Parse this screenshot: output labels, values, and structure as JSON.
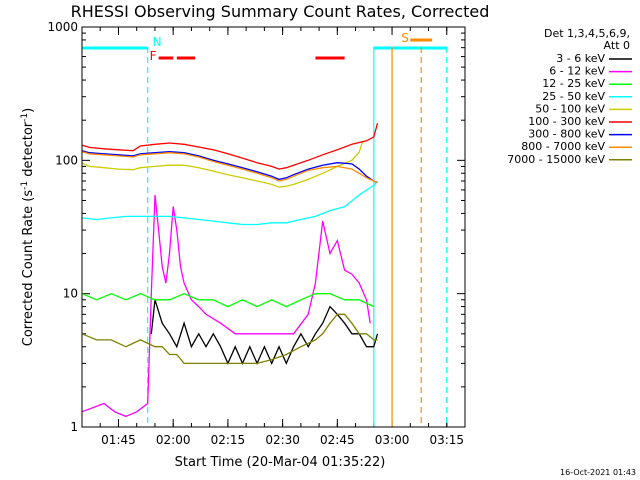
{
  "chart_data": {
    "type": "line",
    "title": "RHESSI Observing Summary Count Rates, Corrected",
    "xlabel": "Start Time (20-Mar-04 01:35:22)",
    "ylabel": "Corrected Count Rate (s⁻¹ detector⁻¹)",
    "ylabel_main": "Corrected Count Rate (s",
    "ylabel_sup1": "-1",
    "ylabel_mid": " detector",
    "ylabel_sup2": "-1",
    "ylabel_end": ")",
    "yscale": "log",
    "ylim": [
      1,
      1000
    ],
    "xlim_minutes": [
      -6,
      99
    ],
    "x_unit": "minutes since 01:41",
    "y_ticks": [
      {
        "value": 1,
        "label": "1"
      },
      {
        "value": 10,
        "label": "10"
      },
      {
        "value": 100,
        "label": "100"
      },
      {
        "value": 1000,
        "label": "1000"
      }
    ],
    "x_ticks": [
      {
        "value": 4,
        "label": "01:45"
      },
      {
        "value": 19,
        "label": "02:00"
      },
      {
        "value": 34,
        "label": "02:15"
      },
      {
        "value": 49,
        "label": "02:30"
      },
      {
        "value": 64,
        "label": "02:45"
      },
      {
        "value": 79,
        "label": "03:00"
      },
      {
        "value": 94,
        "label": "03:15"
      }
    ],
    "legend_header": [
      "Det 1,3,4,5,6,9,",
      "Att 0"
    ],
    "legend_position": "right",
    "series": [
      {
        "name": "3 - 6 keV",
        "color": "#000000",
        "points": [
          [
            0,
            null
          ],
          [
            12,
            null
          ],
          [
            13,
            5
          ],
          [
            14,
            9
          ],
          [
            16,
            6
          ],
          [
            18,
            5
          ],
          [
            20,
            4
          ],
          [
            22,
            6
          ],
          [
            24,
            4
          ],
          [
            26,
            5
          ],
          [
            28,
            4
          ],
          [
            30,
            5
          ],
          [
            32,
            4
          ],
          [
            34,
            3
          ],
          [
            36,
            4
          ],
          [
            38,
            3
          ],
          [
            40,
            4
          ],
          [
            42,
            3
          ],
          [
            44,
            4
          ],
          [
            46,
            3
          ],
          [
            48,
            4
          ],
          [
            50,
            3
          ],
          [
            52,
            4
          ],
          [
            54,
            5
          ],
          [
            56,
            4
          ],
          [
            58,
            5
          ],
          [
            60,
            6
          ],
          [
            62,
            8
          ],
          [
            64,
            7
          ],
          [
            66,
            6
          ],
          [
            68,
            5
          ],
          [
            70,
            5
          ],
          [
            72,
            4
          ],
          [
            74,
            4
          ],
          [
            75,
            5
          ]
        ]
      },
      {
        "name": "6 - 12 keV",
        "color": "#ff00ff",
        "points": [
          [
            -6,
            1.3
          ],
          [
            0,
            1.5
          ],
          [
            3,
            1.3
          ],
          [
            6,
            1.2
          ],
          [
            9,
            1.3
          ],
          [
            12,
            1.5
          ],
          [
            13,
            10
          ],
          [
            14,
            55
          ],
          [
            15,
            30
          ],
          [
            16,
            16
          ],
          [
            17,
            12
          ],
          [
            18,
            20
          ],
          [
            19,
            45
          ],
          [
            20,
            30
          ],
          [
            21,
            16
          ],
          [
            22,
            12
          ],
          [
            24,
            9
          ],
          [
            26,
            8
          ],
          [
            28,
            7
          ],
          [
            32,
            6
          ],
          [
            36,
            5
          ],
          [
            40,
            5
          ],
          [
            44,
            5
          ],
          [
            48,
            5
          ],
          [
            52,
            5
          ],
          [
            56,
            7
          ],
          [
            58,
            12
          ],
          [
            60,
            35
          ],
          [
            62,
            20
          ],
          [
            64,
            25
          ],
          [
            66,
            15
          ],
          [
            68,
            14
          ],
          [
            70,
            12
          ],
          [
            72,
            9
          ],
          [
            73,
            6
          ]
        ]
      },
      {
        "name": "12 - 25 keV",
        "color": "#00ff00",
        "points": [
          [
            -6,
            10
          ],
          [
            -2,
            9
          ],
          [
            2,
            10
          ],
          [
            6,
            9
          ],
          [
            10,
            10
          ],
          [
            14,
            9
          ],
          [
            18,
            9
          ],
          [
            22,
            10
          ],
          [
            26,
            9
          ],
          [
            30,
            9
          ],
          [
            34,
            8
          ],
          [
            38,
            9
          ],
          [
            42,
            8
          ],
          [
            46,
            9
          ],
          [
            50,
            8
          ],
          [
            54,
            9
          ],
          [
            58,
            10
          ],
          [
            62,
            10
          ],
          [
            66,
            9
          ],
          [
            70,
            9
          ],
          [
            74,
            8
          ]
        ]
      },
      {
        "name": "25 - 50 keV",
        "color": "#00ffff",
        "points": [
          [
            -6,
            37
          ],
          [
            -2,
            36
          ],
          [
            2,
            37
          ],
          [
            6,
            38
          ],
          [
            10,
            38
          ],
          [
            14,
            38
          ],
          [
            18,
            38
          ],
          [
            22,
            37
          ],
          [
            26,
            36
          ],
          [
            30,
            35
          ],
          [
            34,
            34
          ],
          [
            38,
            33
          ],
          [
            42,
            33
          ],
          [
            46,
            34
          ],
          [
            50,
            34
          ],
          [
            54,
            36
          ],
          [
            58,
            38
          ],
          [
            62,
            42
          ],
          [
            66,
            45
          ],
          [
            70,
            55
          ],
          [
            74,
            65
          ],
          [
            75,
            70
          ]
        ]
      },
      {
        "name": "50 - 100 keV",
        "color": "#cccc00",
        "points": [
          [
            -6,
            95
          ],
          [
            -4,
            90
          ],
          [
            0,
            88
          ],
          [
            4,
            86
          ],
          [
            8,
            85
          ],
          [
            10,
            88
          ],
          [
            14,
            90
          ],
          [
            18,
            92
          ],
          [
            22,
            92
          ],
          [
            26,
            88
          ],
          [
            30,
            83
          ],
          [
            34,
            78
          ],
          [
            38,
            74
          ],
          [
            42,
            70
          ],
          [
            46,
            66
          ],
          [
            48,
            63
          ],
          [
            50,
            64
          ],
          [
            52,
            66
          ],
          [
            56,
            72
          ],
          [
            60,
            80
          ],
          [
            64,
            90
          ],
          [
            68,
            100
          ],
          [
            70,
            115
          ],
          [
            71,
            140
          ]
        ]
      },
      {
        "name": "100 - 300 keV",
        "color": "#ff0000",
        "points": [
          [
            -6,
            130
          ],
          [
            -4,
            125
          ],
          [
            0,
            122
          ],
          [
            4,
            120
          ],
          [
            8,
            118
          ],
          [
            10,
            128
          ],
          [
            14,
            132
          ],
          [
            18,
            135
          ],
          [
            22,
            132
          ],
          [
            26,
            126
          ],
          [
            30,
            120
          ],
          [
            34,
            112
          ],
          [
            38,
            104
          ],
          [
            42,
            96
          ],
          [
            46,
            90
          ],
          [
            48,
            86
          ],
          [
            50,
            88
          ],
          [
            52,
            92
          ],
          [
            56,
            100
          ],
          [
            60,
            110
          ],
          [
            64,
            120
          ],
          [
            68,
            132
          ],
          [
            72,
            140
          ],
          [
            74,
            150
          ],
          [
            75,
            190
          ]
        ]
      },
      {
        "name": "300 - 800 keV",
        "color": "#0000ff",
        "points": [
          [
            -6,
            118
          ],
          [
            -4,
            114
          ],
          [
            0,
            112
          ],
          [
            4,
            110
          ],
          [
            8,
            108
          ],
          [
            10,
            112
          ],
          [
            14,
            114
          ],
          [
            18,
            116
          ],
          [
            22,
            114
          ],
          [
            26,
            108
          ],
          [
            30,
            100
          ],
          [
            34,
            94
          ],
          [
            38,
            88
          ],
          [
            42,
            82
          ],
          [
            46,
            76
          ],
          [
            48,
            72
          ],
          [
            50,
            74
          ],
          [
            52,
            78
          ],
          [
            56,
            86
          ],
          [
            60,
            92
          ],
          [
            64,
            96
          ],
          [
            68,
            94
          ],
          [
            70,
            86
          ],
          [
            72,
            76
          ],
          [
            74,
            70
          ],
          [
            75,
            68
          ]
        ]
      },
      {
        "name": "800 - 7000 keV",
        "color": "#ff8c00",
        "points": [
          [
            -6,
            116
          ],
          [
            -4,
            112
          ],
          [
            0,
            110
          ],
          [
            4,
            108
          ],
          [
            8,
            106
          ],
          [
            10,
            110
          ],
          [
            14,
            112
          ],
          [
            18,
            114
          ],
          [
            22,
            112
          ],
          [
            26,
            106
          ],
          [
            30,
            98
          ],
          [
            34,
            92
          ],
          [
            38,
            86
          ],
          [
            42,
            80
          ],
          [
            46,
            74
          ],
          [
            48,
            70
          ],
          [
            50,
            72
          ],
          [
            52,
            76
          ],
          [
            56,
            84
          ],
          [
            60,
            88
          ],
          [
            64,
            90
          ],
          [
            68,
            86
          ],
          [
            70,
            80
          ],
          [
            72,
            74
          ],
          [
            74,
            70
          ],
          [
            75,
            68
          ]
        ]
      },
      {
        "name": "7000 - 15000 keV",
        "color": "#808000",
        "points": [
          [
            -6,
            5
          ],
          [
            -2,
            4.5
          ],
          [
            2,
            4.5
          ],
          [
            6,
            4
          ],
          [
            10,
            4.5
          ],
          [
            14,
            4
          ],
          [
            16,
            4
          ],
          [
            18,
            3.5
          ],
          [
            20,
            3.5
          ],
          [
            22,
            3
          ],
          [
            26,
            3
          ],
          [
            30,
            3
          ],
          [
            34,
            3
          ],
          [
            38,
            3
          ],
          [
            42,
            3
          ],
          [
            46,
            3.2
          ],
          [
            50,
            3.5
          ],
          [
            54,
            4
          ],
          [
            58,
            4.5
          ],
          [
            60,
            5
          ],
          [
            62,
            6
          ],
          [
            64,
            7
          ],
          [
            66,
            7
          ],
          [
            68,
            6
          ],
          [
            70,
            5
          ],
          [
            72,
            5
          ],
          [
            74,
            4.5
          ],
          [
            75,
            4.5
          ]
        ]
      }
    ],
    "flags": [
      {
        "label": "N",
        "color": "#00ffff",
        "x_start": -6,
        "x_end": 12
      },
      {
        "label": "F",
        "color": "#ff0000",
        "x_start": 15,
        "x_end": 19
      },
      {
        "label": "",
        "color": "#ff0000",
        "x_start": 20,
        "x_end": 25
      },
      {
        "label": "",
        "color": "#ff0000",
        "x_start": 58,
        "x_end": 66
      },
      {
        "label": "S",
        "color": "#ff8c00",
        "x_start": 84,
        "x_end": 90
      },
      {
        "label": "",
        "color": "#00ffff",
        "x_start": 74,
        "x_end": 94
      }
    ],
    "vlines": [
      {
        "x": 12,
        "color": "#00ffff",
        "style": "dashed"
      },
      {
        "x": 74,
        "color": "#00ffff",
        "style": "solid"
      },
      {
        "x": 79,
        "color": "#ff8c00",
        "style": "solid"
      },
      {
        "x": 87,
        "color": "#ff8c00",
        "style": "dashed"
      },
      {
        "x": 94,
        "color": "#00ffff",
        "style": "dashed"
      }
    ],
    "timestamp": "16-Oct-2021 01:43"
  }
}
